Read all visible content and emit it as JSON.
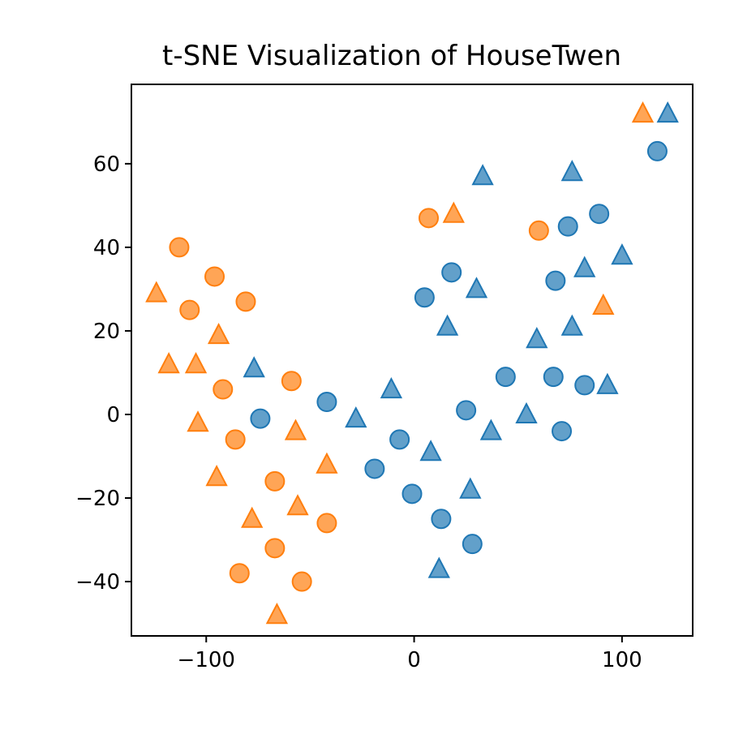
{
  "chart_data": {
    "type": "scatter",
    "title": "t-SNE Visualization of HouseTwen",
    "xlabel": "",
    "ylabel": "",
    "xlim": [
      -136,
      134
    ],
    "ylim": [
      -53,
      79
    ],
    "xticks": [
      -100,
      0,
      100
    ],
    "xtick_labels": [
      "−100",
      "0",
      "100"
    ],
    "yticks": [
      -40,
      -20,
      0,
      20,
      40,
      60
    ],
    "ytick_labels": [
      "−40",
      "−20",
      "0",
      "20",
      "40",
      "60"
    ],
    "grid": false,
    "legend": false,
    "series": [
      {
        "color": "#1f77b4",
        "marker": "circle",
        "points": [
          [
            -74,
            -1
          ],
          [
            -42,
            3
          ],
          [
            -7,
            -6
          ],
          [
            -19,
            -13
          ],
          [
            -1,
            -19
          ],
          [
            13,
            -25
          ],
          [
            28,
            -31
          ],
          [
            5,
            28
          ],
          [
            18,
            34
          ],
          [
            25,
            1
          ],
          [
            44,
            9
          ],
          [
            67,
            9
          ],
          [
            71,
            -4
          ],
          [
            82,
            7
          ],
          [
            68,
            32
          ],
          [
            74,
            45
          ],
          [
            89,
            48
          ],
          [
            117,
            63
          ]
        ]
      },
      {
        "color": "#1f77b4",
        "marker": "triangle",
        "points": [
          [
            -77,
            11
          ],
          [
            -28,
            -1
          ],
          [
            -11,
            6
          ],
          [
            8,
            -9
          ],
          [
            12,
            -37
          ],
          [
            27,
            -18
          ],
          [
            16,
            21
          ],
          [
            30,
            30
          ],
          [
            33,
            57
          ],
          [
            37,
            -4
          ],
          [
            54,
            0
          ],
          [
            59,
            18
          ],
          [
            76,
            21
          ],
          [
            76,
            58
          ],
          [
            82,
            35
          ],
          [
            93,
            7
          ],
          [
            100,
            38
          ],
          [
            122,
            72
          ]
        ]
      },
      {
        "color": "#ff7f0e",
        "marker": "circle",
        "points": [
          [
            -113,
            40
          ],
          [
            -108,
            25
          ],
          [
            -96,
            33
          ],
          [
            -81,
            27
          ],
          [
            -92,
            6
          ],
          [
            -86,
            -6
          ],
          [
            -59,
            8
          ],
          [
            -67,
            -16
          ],
          [
            -67,
            -32
          ],
          [
            -84,
            -38
          ],
          [
            -54,
            -40
          ],
          [
            -42,
            -26
          ],
          [
            7,
            47
          ],
          [
            60,
            44
          ]
        ]
      },
      {
        "color": "#ff7f0e",
        "marker": "triangle",
        "points": [
          [
            -124,
            29
          ],
          [
            -118,
            12
          ],
          [
            -105,
            12
          ],
          [
            -104,
            -2
          ],
          [
            -94,
            19
          ],
          [
            -95,
            -15
          ],
          [
            -78,
            -25
          ],
          [
            -57,
            -4
          ],
          [
            -56,
            -22
          ],
          [
            -42,
            -12
          ],
          [
            -66,
            -48
          ],
          [
            19,
            48
          ],
          [
            91,
            26
          ],
          [
            110,
            72
          ]
        ]
      }
    ]
  }
}
